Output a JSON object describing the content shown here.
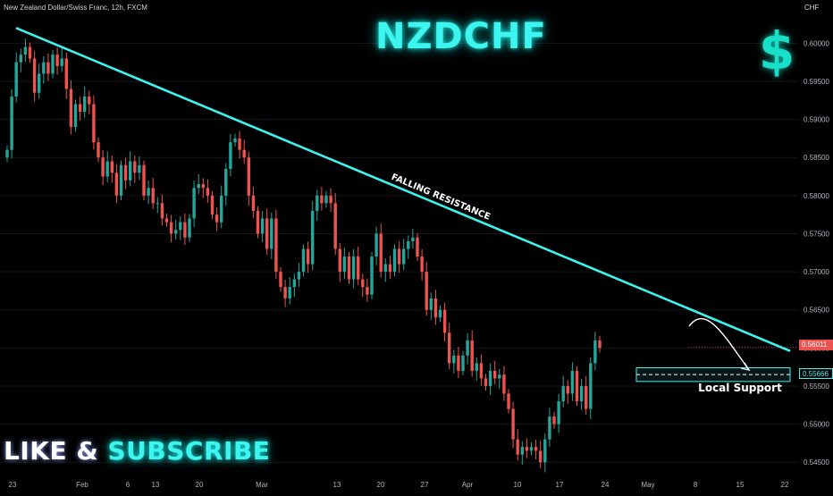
{
  "header": {
    "symbol_label": "New Zealand Dollar/Swiss Franc, 12h, FXCM",
    "currency": "CHF"
  },
  "overlay": {
    "title": "NZDCHF",
    "dollar_glyph": "$",
    "cta_like": "LIKE & ",
    "cta_subscribe": "SUBSCRIBE"
  },
  "colors": {
    "up": "#26a69a",
    "down": "#ef5350",
    "accent": "#3ef4ee",
    "background": "#000000",
    "axis_text": "#b2b5be"
  },
  "chart_data": {
    "type": "candlestick",
    "x_tick_labels": [
      "23",
      "Feb",
      "6",
      "13",
      "20",
      "Mar",
      "13",
      "20",
      "27",
      "Apr",
      "10",
      "17",
      "24",
      "May",
      "8",
      "15",
      "22"
    ],
    "y_ticks": [
      0.545,
      0.55,
      0.555,
      0.56,
      0.565,
      0.57,
      0.575,
      0.58,
      0.585,
      0.59,
      0.595,
      0.6
    ],
    "y_tick_labels": [
      "0.54500",
      "0.55000",
      "0.55500",
      "0.56000",
      "0.56500",
      "0.57000",
      "0.57500",
      "0.58000",
      "0.58500",
      "0.59000",
      "0.59500",
      "0.60000"
    ],
    "ylim": [
      0.5435,
      0.6045
    ],
    "current_price": "0.56011",
    "support_price": "0.55666",
    "annotations": {
      "trendline": "FALLING RESISTANCE",
      "zone": "Local Support"
    },
    "trendline_points": [
      [
        0,
        0.602
      ],
      [
        150,
        0.5596
      ]
    ],
    "support_zone": [
      0.5556,
      0.5574
    ],
    "closes": [
      0.586,
      0.593,
      0.5975,
      0.5985,
      0.5995,
      0.598,
      0.5935,
      0.596,
      0.5975,
      0.596,
      0.5985,
      0.597,
      0.598,
      0.594,
      0.589,
      0.592,
      0.591,
      0.593,
      0.592,
      0.587,
      0.585,
      0.5825,
      0.5845,
      0.583,
      0.58,
      0.584,
      0.582,
      0.5845,
      0.583,
      0.584,
      0.58,
      0.581,
      0.579,
      0.579,
      0.577,
      0.5765,
      0.575,
      0.5755,
      0.5765,
      0.5745,
      0.577,
      0.581,
      0.5815,
      0.581,
      0.58,
      0.5775,
      0.5765,
      0.58,
      0.5835,
      0.587,
      0.5875,
      0.586,
      0.585,
      0.58,
      0.578,
      0.575,
      0.577,
      0.573,
      0.577,
      0.57,
      0.568,
      0.5665,
      0.568,
      0.569,
      0.57,
      0.573,
      0.571,
      0.578,
      0.58,
      0.579,
      0.58,
      0.579,
      0.573,
      0.57,
      0.572,
      0.569,
      0.572,
      0.569,
      0.568,
      0.567,
      0.572,
      0.575,
      0.57,
      0.571,
      0.57,
      0.573,
      0.571,
      0.573,
      0.574,
      0.5745,
      0.572,
      0.57,
      0.565,
      0.5665,
      0.564,
      0.565,
      0.562,
      0.558,
      0.559,
      0.557,
      0.559,
      0.561,
      0.557,
      0.558,
      0.556,
      0.555,
      0.557,
      0.556,
      0.5565,
      0.554,
      0.552,
      0.548,
      0.546,
      0.547,
      0.5465,
      0.547,
      0.5465,
      0.545,
      0.548,
      0.551,
      0.55,
      0.553,
      0.555,
      0.554,
      0.557,
      0.553,
      0.555,
      0.552,
      0.558,
      0.561,
      0.56
    ]
  }
}
